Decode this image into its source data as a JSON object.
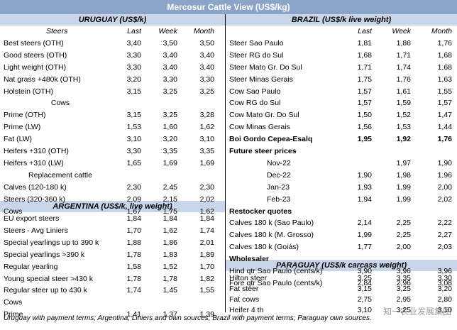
{
  "title": "Mercosur Cattle View (US$/kg)",
  "columns": {
    "last": "Last",
    "week": "Week",
    "month": "Month"
  },
  "uruguay": {
    "header": "URUGUAY (US$/k)",
    "steers_label": "Steers",
    "steers": [
      {
        "label": "Best steers (OTH)",
        "last": "3,40",
        "week": "3,50",
        "month": "3,50"
      },
      {
        "label": "Good steers (OTH)",
        "last": "3,30",
        "week": "3,40",
        "month": "3,40"
      },
      {
        "label": "Light weight (OTH)",
        "last": "3,30",
        "week": "3,40",
        "month": "3,40"
      },
      {
        "label": "Nat grass +480k (OTH)",
        "last": "3,20",
        "week": "3,30",
        "month": "3,30"
      },
      {
        "label": "Holstein (OTH)",
        "last": "3,15",
        "week": "3,25",
        "month": "3,25"
      }
    ],
    "cows_label": "Cows",
    "cows": [
      {
        "label": "Prime (OTH)",
        "last": "3,15",
        "week": "3,25",
        "month": "3,28"
      },
      {
        "label": "Prime (LW)",
        "last": "1,53",
        "week": "1,60",
        "month": "1,62"
      },
      {
        "label": "Fat (LW)",
        "last": "3,10",
        "week": "3,20",
        "month": "3,10"
      },
      {
        "label": "Heifers +310 (OTH)",
        "last": "3,30",
        "week": "3,35",
        "month": "3,35"
      },
      {
        "label": "Heifers +310 (LW)",
        "last": "1,65",
        "week": "1,69",
        "month": "1,69"
      }
    ],
    "replacement_label": "Replacement cattle",
    "replacement": [
      {
        "label": "Calves (120-180 k)",
        "last": "2,30",
        "week": "2,45",
        "month": "2,30"
      },
      {
        "label": "Steers (320-360 k)",
        "last": "2,09",
        "week": "2,15",
        "month": "2,02"
      },
      {
        "label": "Cows",
        "last": "1,67",
        "week": "1,75",
        "month": "1,62"
      }
    ]
  },
  "argentina": {
    "header": "ARGENTINA (US$/k, live weight)",
    "rows": [
      {
        "label": "EU export steers",
        "last": "1,84",
        "week": "1,84",
        "month": "1,84"
      },
      {
        "label": "Steers - Avg Liniers",
        "last": "1,70",
        "week": "1,62",
        "month": "1,74"
      },
      {
        "label": "Special yearlings up to 390 k",
        "last": "1,88",
        "week": "1,86",
        "month": "2,01"
      },
      {
        "label": "Special yearlings >390 k",
        "last": "1,78",
        "week": "1,83",
        "month": "1,89"
      },
      {
        "label": "Regular yearling",
        "last": "1,58",
        "week": "1,52",
        "month": "1,70"
      },
      {
        "label": "Young special steer >430 k",
        "last": "1,78",
        "week": "1,78",
        "month": "1,82"
      },
      {
        "label": "Regular steer up to 430 k",
        "last": "1,74",
        "week": "1,45",
        "month": "1,55"
      },
      {
        "label": "Cows",
        "last": "",
        "week": "",
        "month": ""
      },
      {
        "label": "Prime",
        "last": "1,41",
        "week": "1,37",
        "month": "1,39"
      }
    ]
  },
  "brazil": {
    "header": "BRAZIL  (US$/k live weight)",
    "rows": [
      {
        "label": "Steer Sao Paulo",
        "last": "1,81",
        "week": "1,86",
        "month": "1,76"
      },
      {
        "label": "Steer RG do Sul",
        "last": "1,68",
        "week": "1,71",
        "month": "1,68"
      },
      {
        "label": "Steer Mato Gr. Do Sul",
        "last": "1,71",
        "week": "1,74",
        "month": "1,68"
      },
      {
        "label": "Steer Minas Gerais",
        "last": "1,75",
        "week": "1,76",
        "month": "1,63"
      },
      {
        "label": "Cow Sao Paulo",
        "last": "1,57",
        "week": "1,61",
        "month": "1,55"
      },
      {
        "label": "Cow RG do Sul",
        "last": "1,57",
        "week": "1,59",
        "month": "1,57"
      },
      {
        "label": "Cow Mato Gr. Do Sul",
        "last": "1,50",
        "week": "1,52",
        "month": "1,47"
      },
      {
        "label": "Cow Minas Gerais",
        "last": "1,56",
        "week": "1,53",
        "month": "1,44"
      }
    ],
    "boi_gordo": {
      "label": "Boi Gordo Cepea-Esalq",
      "last": "1,95",
      "week": "1,92",
      "month": "1,76"
    },
    "future_label": "Future steer prices",
    "future": [
      {
        "label": "Nov-22",
        "last": "",
        "week": "1,97",
        "month": "1,90"
      },
      {
        "label": "Dec-22",
        "last": "1,90",
        "week": "1,98",
        "month": "1,96"
      },
      {
        "label": "Jan-23",
        "last": "1,93",
        "week": "1,99",
        "month": "2,00"
      },
      {
        "label": "Feb-23",
        "last": "1,94",
        "week": "1,99",
        "month": "2,02"
      }
    ],
    "restocker_label": "Restocker quotes",
    "restocker": [
      {
        "label": "Calves 180 k (Sao Paulo)",
        "last": "2,14",
        "week": "2,25",
        "month": "2,22"
      },
      {
        "label": "Calves 180 k (M. Grosso)",
        "last": "1,99",
        "week": "2,25",
        "month": "2,27"
      },
      {
        "label": "Calves 180 k (Goiás)",
        "last": "1,77",
        "week": "2,00",
        "month": "2,03"
      }
    ],
    "wholesaler_label": "Wholesaler",
    "wholesaler": [
      {
        "label": "Hind qtr Sao Paulo (cents/k)",
        "last": "3,90",
        "week": "3,96",
        "month": "3,96"
      },
      {
        "label": "Fore qtr Sao Paulo (cents/k)",
        "last": "2,84",
        "week": "2,96",
        "month": "3,08"
      }
    ]
  },
  "paraguay": {
    "header": "PARAGUAY  (US$/k carcass weight)",
    "rows": [
      {
        "label": "Hilton steer",
        "last": "3,25",
        "week": "3,35",
        "month": "3,30"
      },
      {
        "label": "Fat steer",
        "last": "3,15",
        "week": "3,25",
        "month": "3,20"
      },
      {
        "label": "Fat cows",
        "last": "2,75",
        "week": "2,95",
        "month": "2,80"
      },
      {
        "label": "Heifer 4 th",
        "last": "3,10",
        "week": "3,25",
        "month": "3,10"
      }
    ]
  },
  "footer": "Uruguay with payment terms; Argentina, Liniers and own sources; Brazil with payment terms; Paraguay own sources.",
  "watermark": "知一农业发展集团"
}
